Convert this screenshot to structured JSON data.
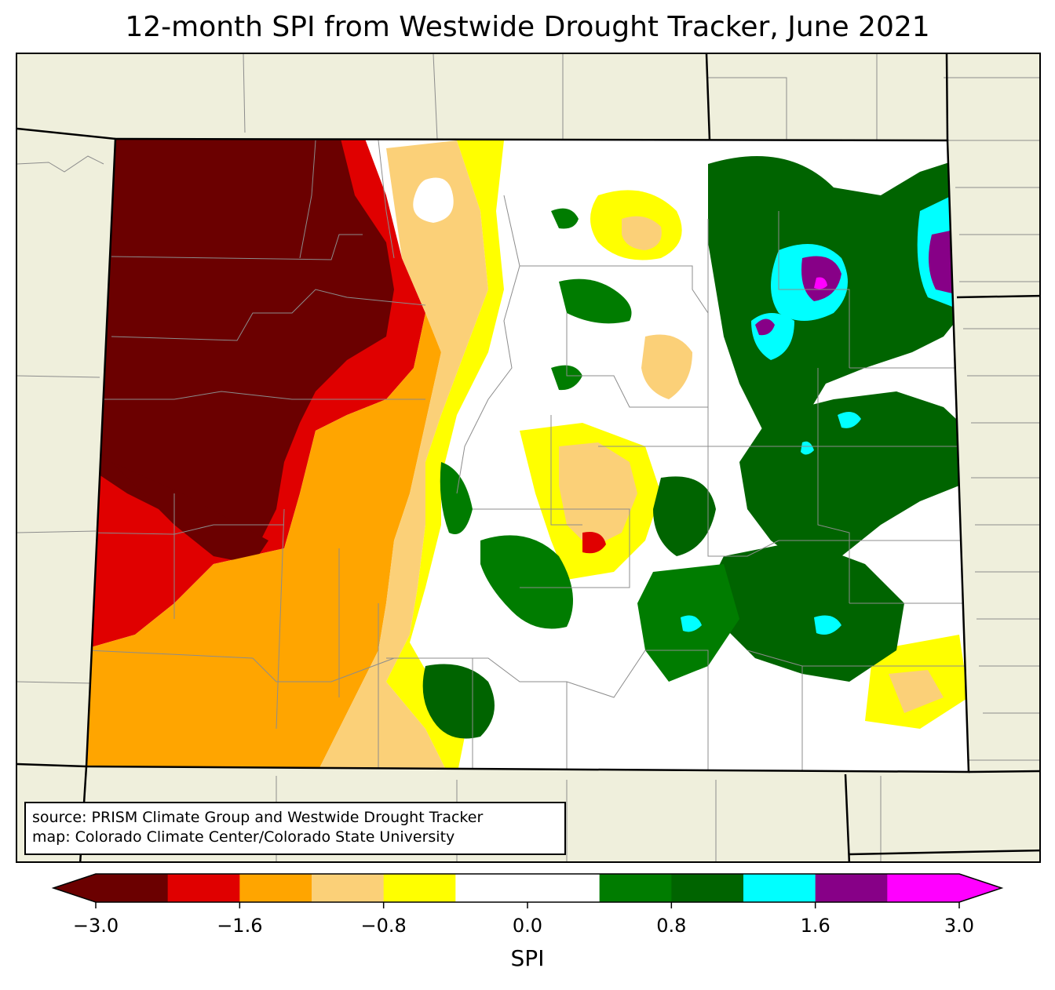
{
  "title": "12-month SPI from Westwide Drought Tracker, June 2021",
  "source": {
    "line1": "source: PRISM Climate Group and Westwide Drought Tracker",
    "line2": "map: Colorado Climate Center/Colorado State University"
  },
  "colorbar": {
    "label": "SPI",
    "ticks": [
      "−3.0",
      "−1.6",
      "−0.8",
      "0.0",
      "0.8",
      "1.6",
      "3.0"
    ],
    "colors": [
      "#6b0000",
      "#e00000",
      "#ffa500",
      "#fbd078",
      "#ffff00",
      "#ffffff",
      "#ffffff",
      "#007c00",
      "#006400",
      "#00ffff",
      "#870087",
      "#ff00ff"
    ],
    "extend_low_color": "#6b0000",
    "extend_high_color": "#ff00ff"
  },
  "colors": {
    "land_background": "#efefdc",
    "county_lines": "#8c8c8c",
    "state_lines": "#000000"
  }
}
